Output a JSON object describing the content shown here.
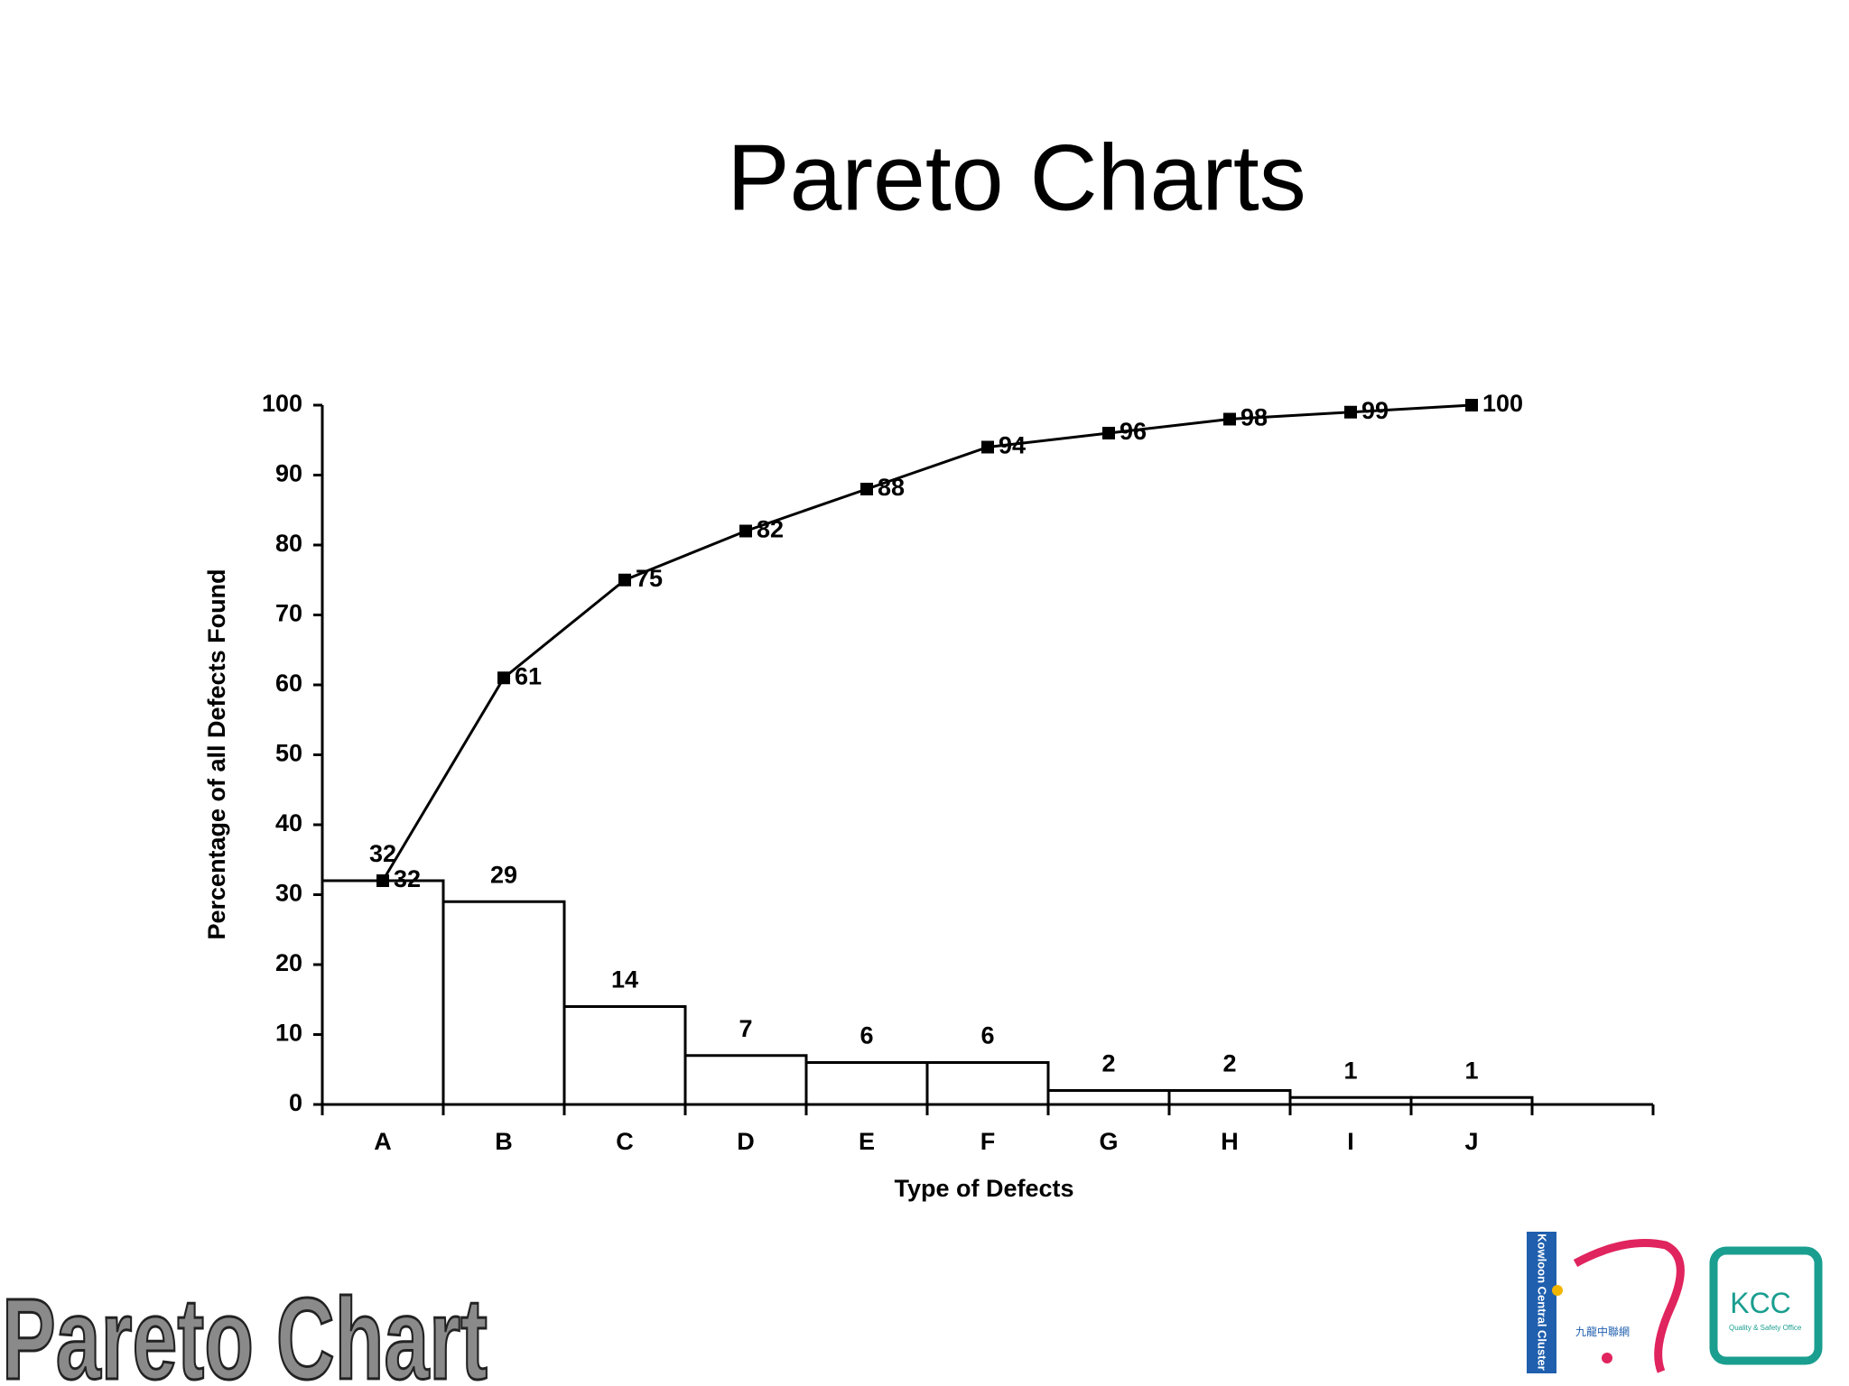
{
  "title": "Pareto Charts",
  "chart_data": {
    "type": "pareto",
    "x_label": "Type of Defects",
    "y_label": "Percentage of all Defects Found",
    "categories": [
      "A",
      "B",
      "C",
      "D",
      "E",
      "F",
      "G",
      "H",
      "I",
      "J"
    ],
    "values": [
      32,
      29,
      14,
      7,
      6,
      6,
      2,
      2,
      1,
      1
    ],
    "cumulative": [
      32,
      61,
      75,
      82,
      88,
      94,
      96,
      98,
      99,
      100
    ],
    "bar_color": "#ffffff",
    "line_color": "#000000",
    "ylim": [
      0,
      100
    ],
    "yticks": [
      0,
      10,
      20,
      30,
      40,
      50,
      60,
      70,
      80,
      90,
      100
    ]
  },
  "footer": "Pareto Chart",
  "logos": {
    "kcc": "KCC",
    "kcc_sub": "Quality & Safety Office",
    "cluster": "Kowloon Central Cluster",
    "cluster_zh": "九龍中聯網"
  }
}
